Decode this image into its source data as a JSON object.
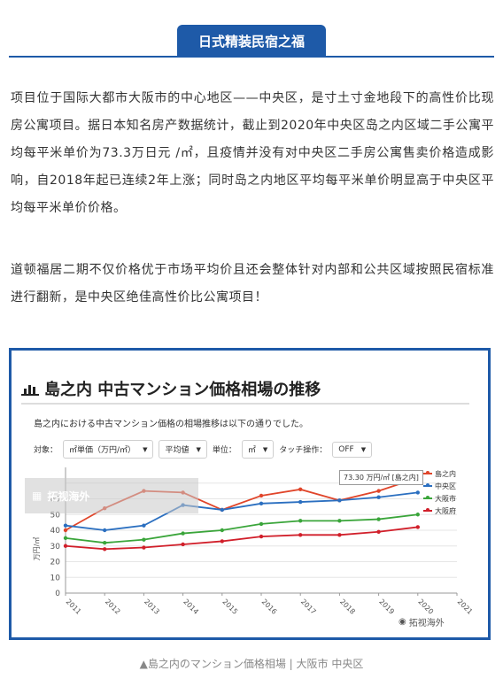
{
  "header": {
    "title": "日式精装民宿之福"
  },
  "paragraphs": [
    "项目位于国际大都市大阪市的中心地区——中央区，是寸土寸金地段下的高性价比现房公寓项目。据日本知名房产数据统计，截止到2020年中央区岛之内区域二手公寓平均每平米单价为73.3万日元 /㎡，且疫情并没有对中央区二手房公寓售卖价格造成影响，自2018年起已连续2年上涨；同时岛之内地区平均每平米单价明显高于中央区平均每平米单价价格。",
    "道顿福居二期不仅价格优于市场平均价且还会整体针对内部和公共区域按照民宿标准进行翻新，是中央区绝佳高性价比公寓项目！"
  ],
  "figure": {
    "title": "島之内 中古マンション価格相場の推移",
    "subtitle": "島之内における中古マンション価格の相場推移は以下の通りでした。",
    "controls": {
      "target_label": "対象：",
      "target_value": "㎡単価（万円/㎡）",
      "avg_value": "平均値",
      "unit_label": "単位：",
      "unit_value": "㎡",
      "touch_label": "タッチ操作：",
      "touch_value": "OFF"
    },
    "ylabel": "万円/㎡",
    "tooltip": "73.30 万円/㎡ [島之内]",
    "watermark": "拓视海外",
    "watermark_br": "拓视海外",
    "caption": "▲島之内のマンション価格相場 | 大阪市 中央区"
  },
  "chart_data": {
    "type": "line",
    "x": [
      "2011",
      "2012",
      "2013",
      "2014",
      "2015",
      "2016",
      "2017",
      "2018",
      "2019",
      "2020",
      "2021"
    ],
    "ylim": [
      0,
      80
    ],
    "yticks": [
      0,
      10,
      20,
      30,
      40,
      50,
      60,
      70
    ],
    "ytick_labels": [
      "0",
      "10",
      "20",
      "30",
      "40",
      "50",
      "60",
      ""
    ],
    "series": [
      {
        "name": "島之内",
        "color": "#e0452a",
        "values": [
          40,
          54,
          65,
          64,
          53,
          62,
          66,
          59,
          65,
          73.3,
          null
        ]
      },
      {
        "name": "中央区",
        "color": "#2b6fc0",
        "values": [
          43,
          40,
          43,
          56,
          53,
          57,
          58,
          59,
          61,
          64,
          null
        ]
      },
      {
        "name": "大阪市",
        "color": "#3aa53a",
        "values": [
          35,
          32,
          34,
          38,
          40,
          44,
          46,
          46,
          47,
          50,
          null
        ]
      },
      {
        "name": "大阪府",
        "color": "#d11f2a",
        "values": [
          30,
          28,
          29,
          31,
          33,
          36,
          37,
          37,
          39,
          42,
          null
        ]
      }
    ]
  }
}
